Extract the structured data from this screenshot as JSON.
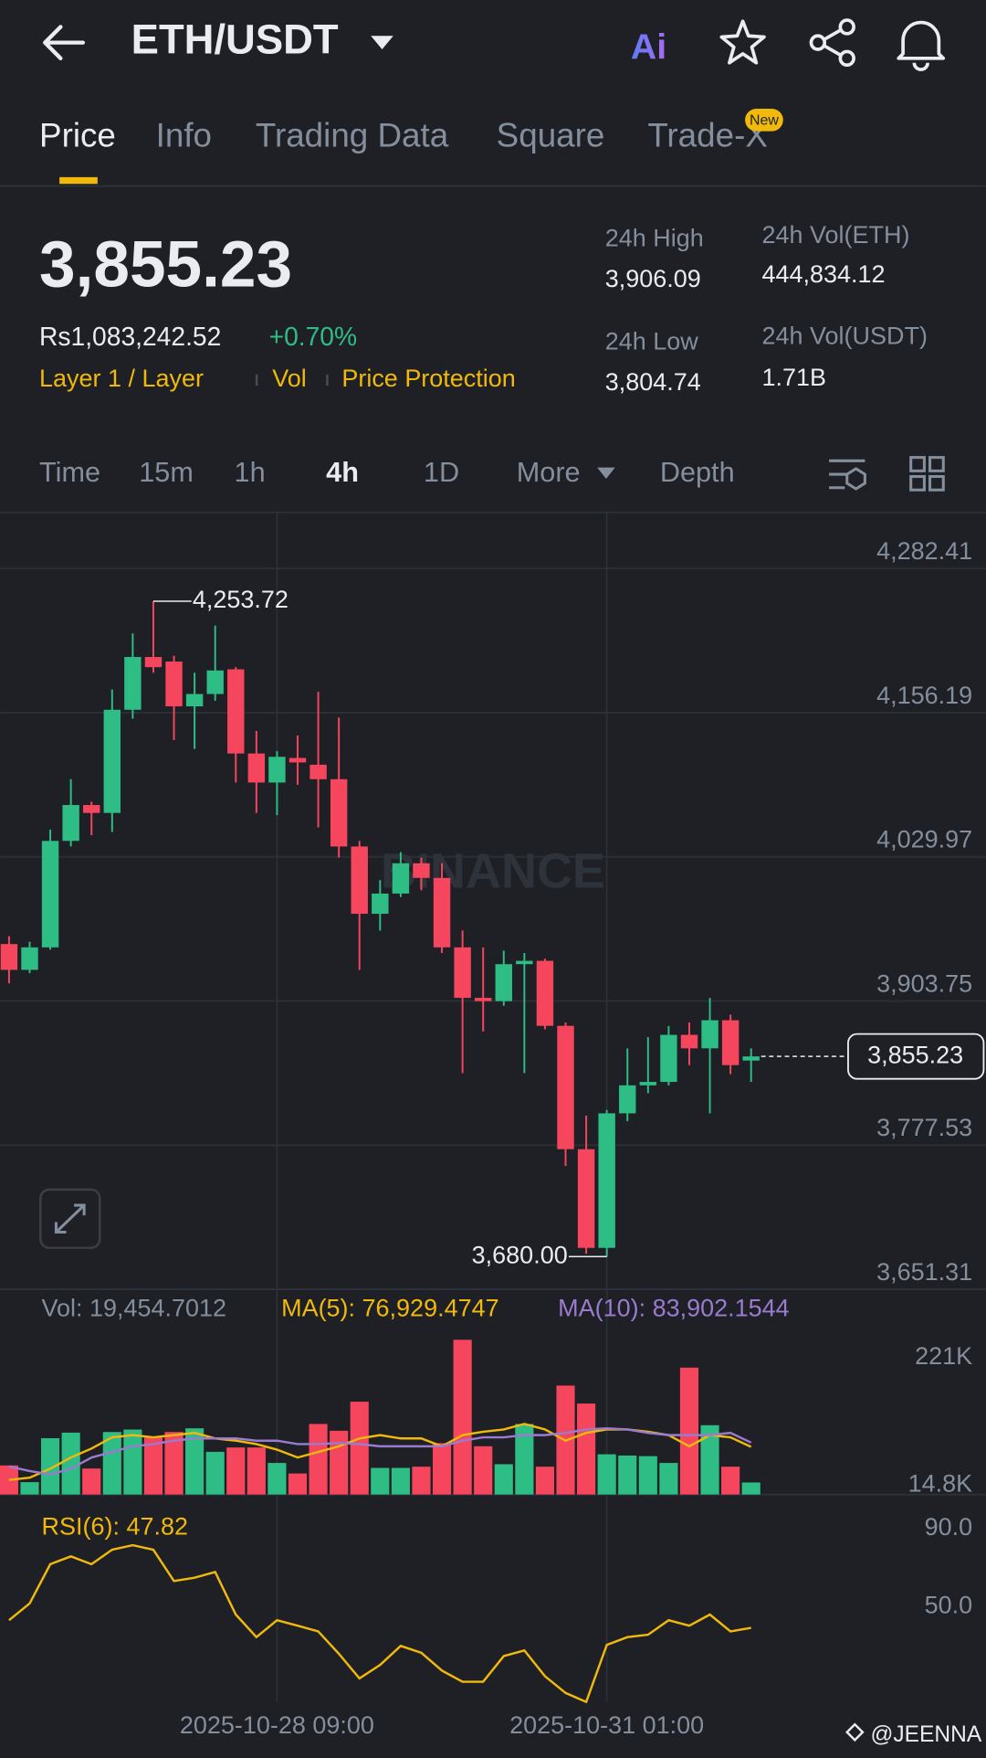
{
  "header": {
    "pair": "ETH/USDT",
    "ai": "Ai"
  },
  "tabs": {
    "items": [
      "Price",
      "Info",
      "Trading Data",
      "Square",
      "Trade-X"
    ],
    "active": 0,
    "badge": "New"
  },
  "ticker": {
    "price": "3,855.23",
    "local_price": "Rs1,083,242.52",
    "change": "+0.70%",
    "tags": [
      "Layer 1 / Layer",
      "Vol",
      "Price Protection"
    ],
    "stats": [
      {
        "label": "24h High",
        "value": "3,906.09"
      },
      {
        "label": "24h Low",
        "value": "3,804.74"
      },
      {
        "label": "24h Vol(ETH)",
        "value": "444,834.12"
      },
      {
        "label": "24h Vol(USDT)",
        "value": "1.71B"
      }
    ]
  },
  "intervals": {
    "items": [
      "Time",
      "15m",
      "1h",
      "4h",
      "1D",
      "More",
      "Depth"
    ],
    "active": 3
  },
  "watermark": "BINANCE",
  "credit": "@JEENNA",
  "chart_data": [
    {
      "type": "candlestick",
      "categories": [
        null,
        null,
        null,
        null,
        null,
        null,
        null,
        null,
        null,
        null,
        null,
        null,
        null,
        "2025-10-28 09:00",
        null,
        null,
        null,
        null,
        null,
        null,
        null,
        null,
        null,
        null,
        null,
        null,
        null,
        null,
        null,
        "2025-10-31 01:00",
        null,
        null,
        null,
        null,
        null,
        null,
        null
      ],
      "open": [
        3953.6,
        3931.0,
        3950.7,
        4043.9,
        4075.3,
        4068.4,
        4158.7,
        4204.9,
        4200.9,
        4161.7,
        4172.5,
        4194.1,
        4120.4,
        4095.0,
        4116.5,
        4110.6,
        4097.9,
        4039.0,
        3980.1,
        3997.8,
        4024.3,
        4011.5,
        3950.7,
        3906.5,
        3903.6,
        3936.0,
        3938.9,
        3882.0,
        3774.0,
        3687.6,
        3805.4,
        3829.9,
        3832.9,
        3874.1,
        3862.3,
        3886.9,
        3851.6
      ],
      "high": [
        3960.5,
        3955.6,
        4053.7,
        4097.9,
        4078.2,
        4176.4,
        4225.5,
        4253.72,
        4205.9,
        4191.1,
        4232.4,
        4196.0,
        4140.1,
        4122.4,
        4136.2,
        4174.4,
        4151.9,
        4043.9,
        4009.6,
        4034.1,
        4029.2,
        4024.3,
        3965.4,
        3950.7,
        3947.8,
        3945.8,
        3940.9,
        3884.9,
        3803.4,
        3808.4,
        3862.3,
        3872.1,
        3881.9,
        3884.9,
        3906.5,
        3891.8,
        3862.3
      ],
      "low": [
        3919.2,
        3928.1,
        3948.7,
        4039.0,
        4048.8,
        4051.7,
        4150.9,
        4191.1,
        4132.2,
        4124.4,
        4166.6,
        4095.0,
        4068.4,
        4066.4,
        4093.0,
        4055.7,
        4029.2,
        3931.0,
        3965.4,
        3994.8,
        4000.7,
        3945.8,
        3840.7,
        3877.1,
        3899.6,
        3840.7,
        3879.0,
        3759.3,
        3682.5,
        3680.0,
        3798.5,
        3823.1,
        3829.9,
        3847.6,
        3805.4,
        3839.7,
        3832.9
      ],
      "close": [
        3931.0,
        3950.7,
        4043.9,
        4075.3,
        4068.4,
        4158.7,
        4204.9,
        4196.0,
        4161.7,
        4172.5,
        4193.1,
        4120.4,
        4095.0,
        4117.5,
        4112.6,
        4097.9,
        4039.0,
        3980.1,
        3997.8,
        4024.3,
        4011.5,
        3950.7,
        3906.5,
        3903.6,
        3936.0,
        3938.9,
        3882.0,
        3774.0,
        3687.6,
        3805.4,
        3829.9,
        3832.9,
        3874.1,
        3862.3,
        3886.9,
        3847.6,
        3855.23
      ],
      "up_color": "#2ebd85",
      "down_color": "#f6465d",
      "ylim": [
        3651.31,
        4331.5
      ],
      "yticks": [
        {
          "value": 3651.31,
          "label": "3,651.31"
        },
        {
          "value": 3777.53,
          "label": "3,777.53"
        },
        {
          "value": 3903.75,
          "label": "3,903.75"
        },
        {
          "value": 4029.97,
          "label": "4,029.97"
        },
        {
          "value": 4156.19,
          "label": "4,156.19"
        },
        {
          "value": 4282.41,
          "label": "4,282.41"
        }
      ],
      "grid": true,
      "high_mark": {
        "value": 4253.72,
        "label": "4,253.72"
      },
      "low_mark": {
        "value": 3680.0,
        "label": "3,680.00"
      },
      "last_price": {
        "value": 3855.23,
        "label": "3,855.23"
      }
    },
    {
      "type": "bar",
      "series": [
        {
          "name": "Vol: 19,454.7012",
          "type": "bar",
          "color": "#848e9c",
          "values": [
            47000,
            20000,
            91000,
            100000,
            42000,
            101000,
            105000,
            92000,
            101000,
            107000,
            69000,
            76000,
            76000,
            51000,
            34000,
            114000,
            103000,
            150000,
            43000,
            43000,
            45000,
            83000,
            250000,
            78000,
            49000,
            114000,
            45000,
            176000,
            147000,
            65000,
            63000,
            62000,
            51000,
            205000,
            112000,
            45000,
            19454.7012
          ]
        },
        {
          "name": "MA(5): 76,929.4747",
          "type": "line",
          "color": "#f0b90b",
          "values": [
            23600,
            27200,
            41700,
            59800,
            74300,
            92400,
            96000,
            92400,
            96000,
            99600,
            90600,
            87000,
            81500,
            72500,
            59800,
            68800,
            77900,
            90600,
            96000,
            90600,
            90600,
            77900,
            96000,
            101400,
            105100,
            114100,
            105100,
            87000,
            99600,
            105100,
            105100,
            101400,
            96000,
            77900,
            96000,
            92400,
            76929.4747
          ]
        },
        {
          "name": "MA(10): 83,902.1544",
          "type": "line",
          "color": "#9a7bd0",
          "values": [
            45300,
            38000,
            32600,
            41700,
            59800,
            68800,
            77900,
            81500,
            87000,
            90600,
            90600,
            90600,
            87000,
            87000,
            81500,
            81500,
            83300,
            81500,
            77900,
            77900,
            77900,
            77900,
            87000,
            92400,
            92400,
            96000,
            96000,
            99600,
            105100,
            106900,
            105100,
            99600,
            96000,
            96000,
            96000,
            99600,
            83902.1544
          ]
        }
      ],
      "ylim": [
        0,
        331500
      ],
      "yticks": [
        {
          "value": 14800,
          "label": "14.8K"
        },
        {
          "value": 221000,
          "label": "221K"
        }
      ]
    },
    {
      "type": "line",
      "series": [
        {
          "name": "RSI(6): 47.82",
          "color": "#f0b90b",
          "values": [
            51.7,
            60.3,
            80.3,
            84.3,
            80.3,
            87.7,
            90.0,
            87.7,
            71.7,
            73.4,
            76.3,
            54.6,
            43.1,
            51.7,
            48.9,
            46.0,
            34.6,
            22.0,
            28.9,
            38.6,
            35.1,
            26.0,
            20.3,
            20.3,
            33.4,
            36.3,
            23.1,
            14.6,
            10.0,
            39.1,
            43.1,
            44.3,
            51.7,
            48.9,
            54.6,
            46.0,
            47.82
          ]
        }
      ],
      "ylim": [
        10,
        109
      ],
      "yticks": [
        {
          "value": 50,
          "label": "50.0"
        },
        {
          "value": 90,
          "label": "90.0"
        }
      ]
    }
  ]
}
